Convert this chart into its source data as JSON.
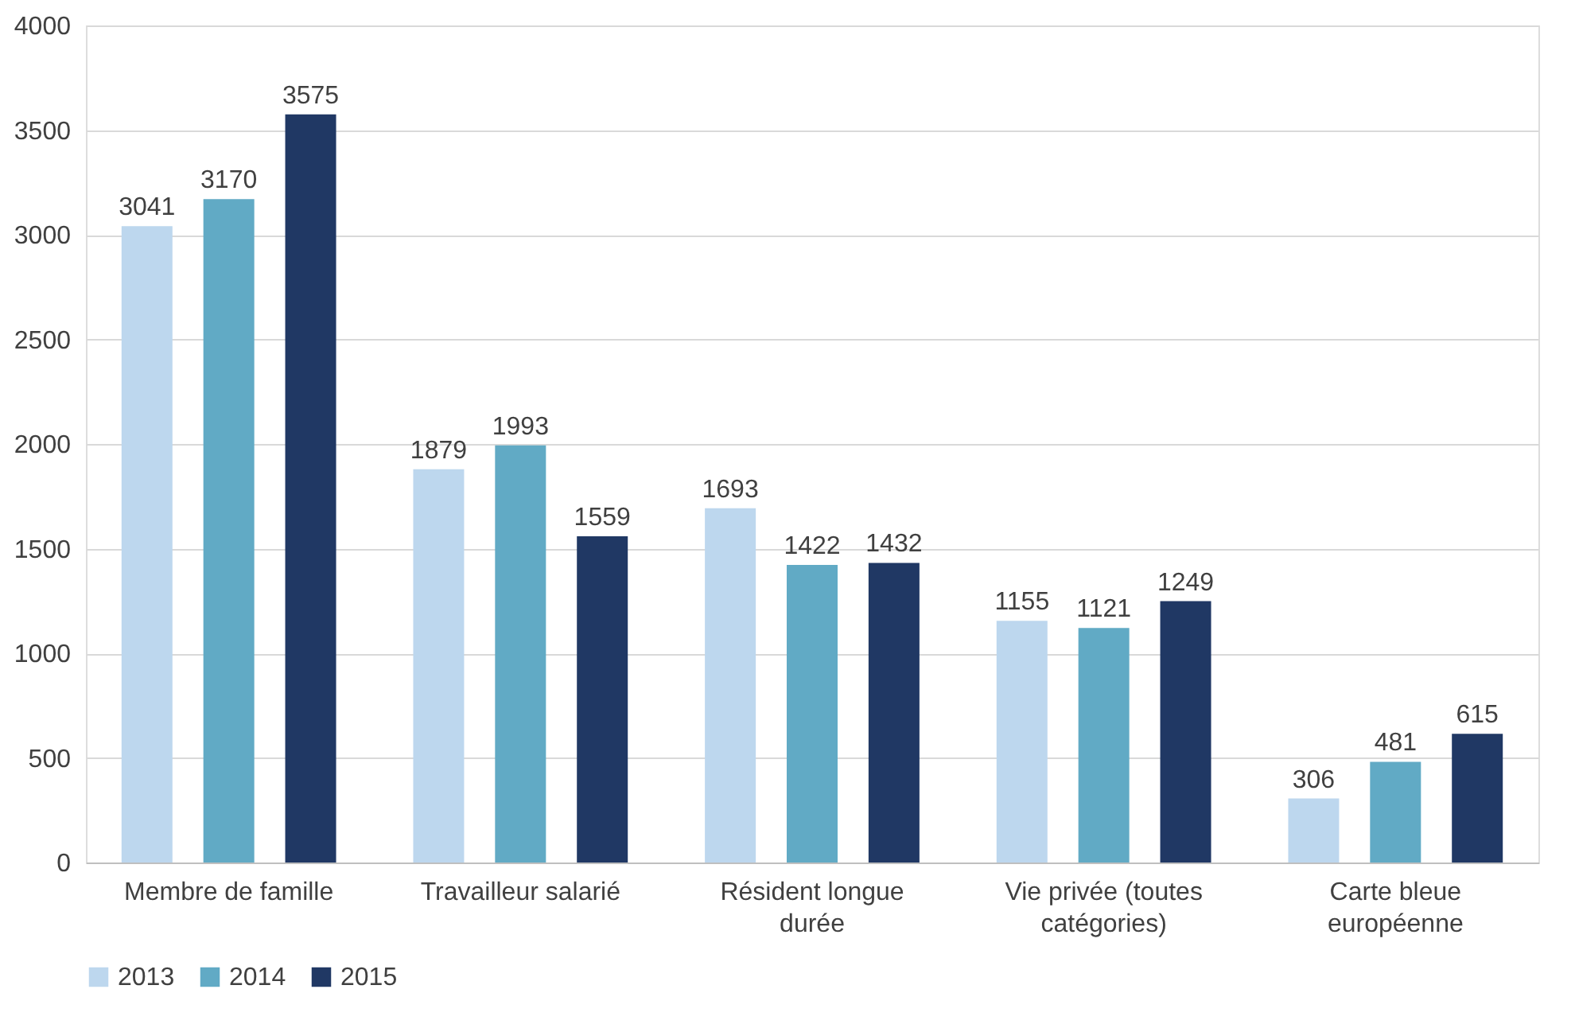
{
  "chart_data": {
    "type": "bar",
    "categories": [
      "Membre de famille",
      "Travailleur salarié",
      "Résident longue durée",
      "Vie privée (toutes catégories)",
      "Carte bleue européenne"
    ],
    "series": [
      {
        "name": "2013",
        "color": "#bdd7ee",
        "values": [
          3041,
          1879,
          1693,
          1155,
          306
        ]
      },
      {
        "name": "2014",
        "color": "#61aac5",
        "values": [
          3170,
          1993,
          1422,
          1121,
          481
        ]
      },
      {
        "name": "2015",
        "color": "#203864",
        "values": [
          3575,
          1559,
          1432,
          1249,
          615
        ]
      }
    ],
    "ylim": [
      0,
      4000
    ],
    "yticks": [
      0,
      500,
      1000,
      1500,
      2000,
      2500,
      3000,
      3500,
      4000
    ],
    "grid": "y",
    "legend": "bottom",
    "data_labels": true
  }
}
